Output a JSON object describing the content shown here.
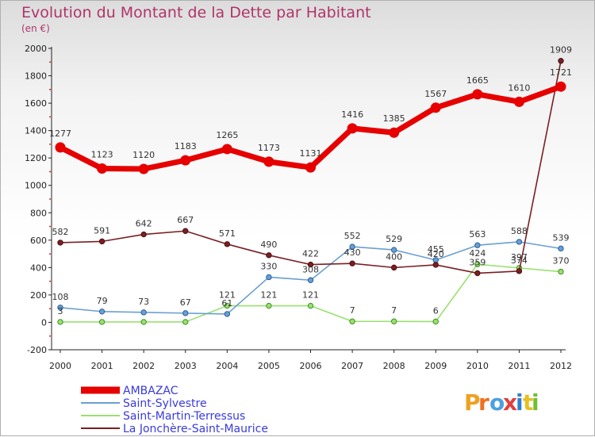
{
  "chart_data": {
    "type": "line",
    "title": "Evolution du Montant de la Dette par Habitant",
    "unit_label": "(en €)",
    "x": [
      "2000",
      "2001",
      "2002",
      "2003",
      "2004",
      "2005",
      "2006",
      "2007",
      "2008",
      "2009",
      "2010",
      "2011",
      "2012"
    ],
    "ylim": [
      -200,
      2000
    ],
    "yticks": [
      "-200",
      "0",
      "200",
      "400",
      "600",
      "800",
      "1000",
      "1200",
      "1400",
      "1600",
      "1800",
      "2000"
    ],
    "grid": false,
    "legend_position": "bottom-left",
    "series": [
      {
        "name": "AMBAZAC",
        "color": "#e60000",
        "values": [
          1277,
          1123,
          1120,
          1183,
          1265,
          1173,
          1131,
          1416,
          1385,
          1567,
          1665,
          1610,
          1721
        ],
        "labels": [
          "1277",
          "1123",
          "1120",
          "1183",
          "1265",
          "1173",
          "1131",
          "1416",
          "1385",
          "1567",
          "1665",
          "1610",
          "1721"
        ]
      },
      {
        "name": "Saint-Sylvestre",
        "color": "#6a9fd0",
        "values": [
          108,
          79,
          73,
          67,
          61,
          330,
          308,
          552,
          529,
          455,
          563,
          588,
          539
        ],
        "labels": [
          "108",
          "79",
          "73",
          "67",
          "61",
          "330",
          "308",
          "552",
          "529",
          "455",
          "563",
          "588",
          "539"
        ]
      },
      {
        "name": "Saint-Martin-Terressus",
        "color": "#99e070",
        "values": [
          3,
          3,
          3,
          3,
          121,
          121,
          121,
          7,
          7,
          6,
          424,
          397,
          370
        ],
        "labels": [
          "3",
          "",
          "",
          "",
          "121",
          "121",
          "121",
          "7",
          "7",
          "6",
          "424",
          "397",
          "370"
        ]
      },
      {
        "name": "La Jonchère-Saint-Maurice",
        "color": "#7a1f22",
        "values": [
          582,
          591,
          642,
          667,
          571,
          490,
          422,
          430,
          400,
          420,
          359,
          374,
          1909
        ],
        "labels": [
          "582",
          "591",
          "642",
          "667",
          "571",
          "490",
          "422",
          "430",
          "400",
          "420",
          "359",
          "374",
          "1909"
        ]
      }
    ]
  },
  "logo": {
    "text": "Proxiti"
  }
}
